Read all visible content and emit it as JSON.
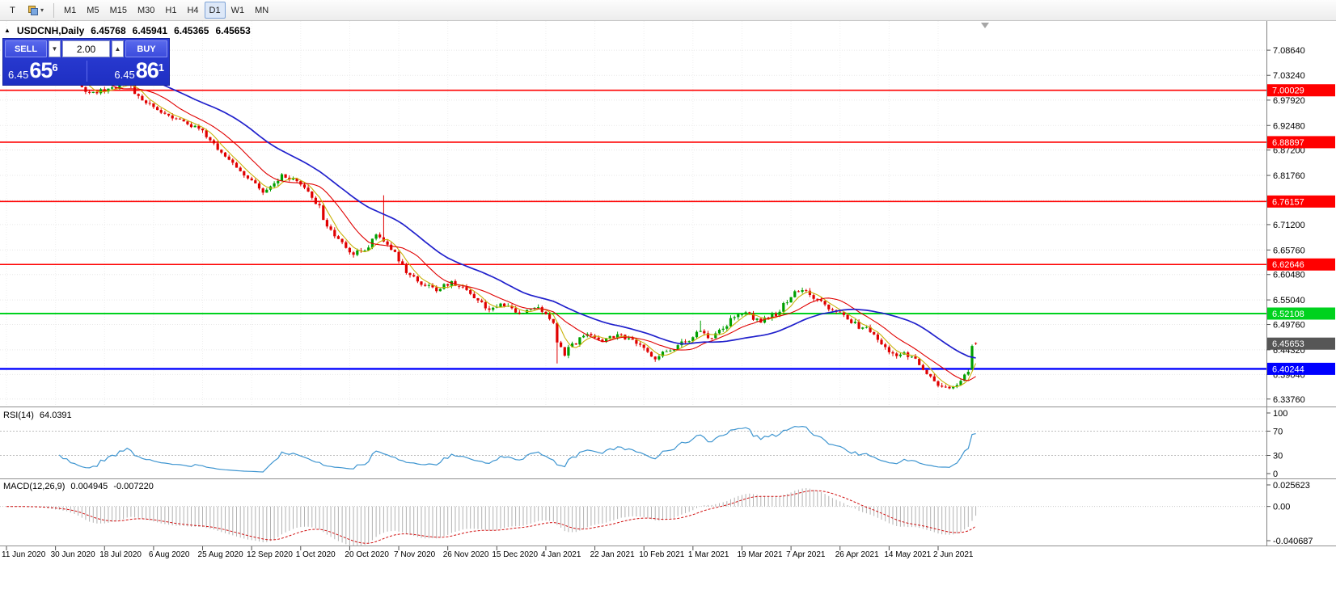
{
  "toolbar": {
    "tool_button_label": "T",
    "timeframes": [
      "M1",
      "M5",
      "M15",
      "M30",
      "H1",
      "H4",
      "D1",
      "W1",
      "MN"
    ],
    "selected_timeframe": "D1"
  },
  "quote_header": {
    "symbol": "USDCNH,Daily",
    "open": "6.45768",
    "high": "6.45941",
    "low": "6.45365",
    "close": "6.45653"
  },
  "trade_panel": {
    "sell_label": "SELL",
    "buy_label": "BUY",
    "volume": "2.00",
    "bid": {
      "big_figure": "6.45",
      "pips": "65",
      "pipette": "6"
    },
    "ask": {
      "big_figure": "6.45",
      "pips": "86",
      "pipette": "1"
    }
  },
  "chart_data": {
    "type": "candlestick",
    "symbol": "USDCNH",
    "timeframe": "Daily",
    "quote": {
      "open": 6.45768,
      "high": 6.45941,
      "low": 6.45365,
      "close": 6.45653
    },
    "y_axis_ticks": [
      "7.08640",
      "7.03240",
      "6.97920",
      "6.92480",
      "6.87200",
      "6.81760",
      "6.76400",
      "6.71200",
      "6.65760",
      "6.60480",
      "6.55040",
      "6.49760",
      "6.44320",
      "6.39040",
      "6.33760"
    ],
    "x_axis_labels": [
      "11 Jun 2020",
      "30 Jun 2020",
      "18 Jul 2020",
      "6 Aug 2020",
      "25 Aug 2020",
      "12 Sep 2020",
      "1 Oct 2020",
      "20 Oct 2020",
      "7 Nov 2020",
      "26 Nov 2020",
      "15 Dec 2020",
      "4 Jan 2021",
      "22 Jan 2021",
      "10 Feb 2021",
      "1 Mar 2021",
      "19 Mar 2021",
      "7 Apr 2021",
      "26 Apr 2021",
      "14 May 2021",
      "2 Jun 2021"
    ],
    "horizontal_lines": [
      {
        "price": 7.00029,
        "label": "7.00029",
        "color": "#ff0000",
        "width": 1.6
      },
      {
        "price": 6.88897,
        "label": "6.88897",
        "color": "#ff0000",
        "width": 1.6
      },
      {
        "price": 6.76157,
        "label": "6.76157",
        "color": "#ff0000",
        "width": 1.6
      },
      {
        "price": 6.62646,
        "label": "6.62646",
        "color": "#ff0000",
        "width": 1.6
      },
      {
        "price": 6.52108,
        "label": "6.52108",
        "color": "#00d21e",
        "width": 2
      },
      {
        "price": 6.40244,
        "label": "6.40244",
        "color": "#0000ff",
        "width": 2.4
      }
    ],
    "current_price": {
      "value": 6.45653,
      "label": "6.45653",
      "badge_color": "#565656"
    },
    "candle_colors": {
      "up": "#00a000",
      "down": "#e00000"
    },
    "moving_averages": [
      {
        "period": 5,
        "color": "#c9b20a",
        "width": 1.1
      },
      {
        "period": 13,
        "color": "#e00000",
        "width": 1.1
      },
      {
        "period": 34,
        "color": "#2020cc",
        "width": 1.7
      }
    ],
    "price_path_anchors": [
      [
        0,
        7.071
      ],
      [
        5,
        7.0755
      ],
      [
        9,
        7.073
      ],
      [
        13,
        7.062
      ],
      [
        16,
        7.048
      ],
      [
        19,
        7.018
      ],
      [
        21,
        7.001
      ],
      [
        24,
        6.997
      ],
      [
        27,
        7.002
      ],
      [
        30,
        7.012
      ],
      [
        32,
        7.018
      ],
      [
        34,
        6.996
      ],
      [
        37,
        6.974
      ],
      [
        40,
        6.958
      ],
      [
        43,
        6.949
      ],
      [
        46,
        6.938
      ],
      [
        49,
        6.924
      ],
      [
        52,
        6.91
      ],
      [
        55,
        6.884
      ],
      [
        57,
        6.864
      ],
      [
        60,
        6.845
      ],
      [
        63,
        6.822
      ],
      [
        66,
        6.796
      ],
      [
        68,
        6.777
      ],
      [
        70,
        6.792
      ],
      [
        73,
        6.815
      ],
      [
        76,
        6.806
      ],
      [
        79,
        6.79
      ],
      [
        81,
        6.772
      ],
      [
        83,
        6.748
      ],
      [
        85,
        6.703
      ],
      [
        88,
        6.684
      ],
      [
        90,
        6.665
      ],
      [
        92,
        6.648
      ],
      [
        94,
        6.655
      ],
      [
        96,
        6.668
      ],
      [
        98,
        6.69
      ],
      [
        100,
        6.678
      ],
      [
        102,
        6.662
      ],
      [
        104,
        6.638
      ],
      [
        106,
        6.607
      ],
      [
        108,
        6.596
      ],
      [
        110,
        6.588
      ],
      [
        112,
        6.578
      ],
      [
        114,
        6.572
      ],
      [
        116,
        6.58
      ],
      [
        118,
        6.588
      ],
      [
        120,
        6.58
      ],
      [
        122,
        6.574
      ],
      [
        124,
        6.558
      ],
      [
        126,
        6.544
      ],
      [
        128,
        6.53
      ],
      [
        130,
        6.534
      ],
      [
        132,
        6.541
      ],
      [
        134,
        6.528
      ],
      [
        136,
        6.52
      ],
      [
        138,
        6.53
      ],
      [
        140,
        6.537
      ],
      [
        142,
        6.524
      ],
      [
        144,
        6.508
      ],
      [
        145,
        6.502
      ],
      [
        146,
        6.464
      ],
      [
        148,
        6.436
      ],
      [
        150,
        6.452
      ],
      [
        152,
        6.468
      ],
      [
        154,
        6.48
      ],
      [
        156,
        6.472
      ],
      [
        158,
        6.462
      ],
      [
        160,
        6.47
      ],
      [
        162,
        6.477
      ],
      [
        164,
        6.468
      ],
      [
        166,
        6.46
      ],
      [
        168,
        6.45
      ],
      [
        170,
        6.438
      ],
      [
        172,
        6.426
      ],
      [
        174,
        6.436
      ],
      [
        176,
        6.444
      ],
      [
        178,
        6.452
      ],
      [
        180,
        6.46
      ],
      [
        182,
        6.468
      ],
      [
        184,
        6.487
      ],
      [
        185,
        6.478
      ],
      [
        186,
        6.47
      ],
      [
        188,
        6.476
      ],
      [
        190,
        6.486
      ],
      [
        192,
        6.508
      ],
      [
        194,
        6.52
      ],
      [
        196,
        6.527
      ],
      [
        198,
        6.512
      ],
      [
        200,
        6.506
      ],
      [
        202,
        6.513
      ],
      [
        204,
        6.52
      ],
      [
        206,
        6.54
      ],
      [
        208,
        6.56
      ],
      [
        210,
        6.571
      ],
      [
        212,
        6.565
      ],
      [
        214,
        6.552
      ],
      [
        216,
        6.545
      ],
      [
        218,
        6.532
      ],
      [
        220,
        6.522
      ],
      [
        222,
        6.516
      ],
      [
        224,
        6.505
      ],
      [
        226,
        6.494
      ],
      [
        228,
        6.489
      ],
      [
        230,
        6.474
      ],
      [
        232,
        6.458
      ],
      [
        234,
        6.442
      ],
      [
        236,
        6.432
      ],
      [
        238,
        6.438
      ],
      [
        240,
        6.428
      ],
      [
        242,
        6.412
      ],
      [
        244,
        6.392
      ],
      [
        246,
        6.374
      ],
      [
        248,
        6.362
      ],
      [
        250,
        6.357
      ],
      [
        251,
        6.362
      ],
      [
        252,
        6.372
      ],
      [
        253,
        6.38
      ],
      [
        254,
        6.388
      ],
      [
        255,
        6.396
      ],
      [
        256,
        6.402
      ],
      [
        257,
        6.4565
      ]
    ],
    "wick_spikes": [
      {
        "day": 100,
        "high": 6.775
      },
      {
        "day": 146,
        "low": 6.414
      },
      {
        "day": 184,
        "high": 6.506
      }
    ],
    "rally_candle": {
      "open": 6.402,
      "high": 6.4545,
      "low": 6.3995,
      "close": 6.4515
    },
    "rsi": {
      "label": "RSI(14)",
      "value": "64.0391",
      "period": 14,
      "levels": [
        "100",
        "70",
        "30",
        "0"
      ],
      "dotted_levels": [
        70,
        30
      ],
      "color": "#3e95d0"
    },
    "macd": {
      "label": "MACD(12,26,9)",
      "macd_value": "0.004945",
      "signal_value": "-0.007220",
      "fast": 12,
      "slow": 26,
      "signal": 9,
      "scale": [
        "0.025623",
        "0.00",
        "-0.040687"
      ],
      "histogram_color": "#b2b2b2",
      "signal_color": "#d01010"
    }
  }
}
